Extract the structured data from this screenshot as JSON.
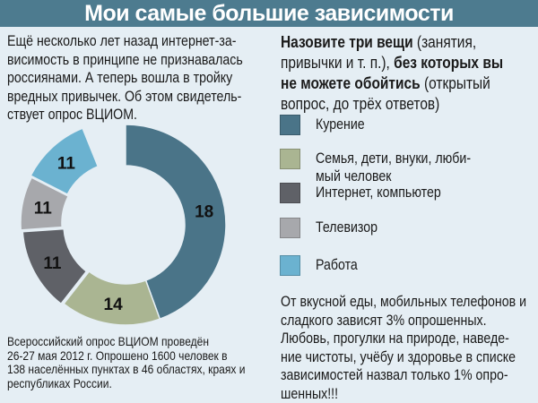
{
  "title": "Мои самые большие зависимости",
  "intro_lines": [
    "Ещё несколько лет назад интернет-за-",
    "висимость в принципе не признавалась",
    "россиянами. А теперь вошла в тройку",
    "вредных привычек. Об этом свидетель-",
    "ствует опрос ВЦИОМ."
  ],
  "question": {
    "line1_bold": "Назовите три вещи",
    "line1_rest": " (занятия,",
    "line2_normal": "привычки и т. п.), ",
    "line2_bold": "без которых вы",
    "line3_bold": "не можете обойтись",
    "line3_rest": " (открытый",
    "line4": "вопрос, до трёх ответов)"
  },
  "chart_data": {
    "type": "pie",
    "title": "Мои самые большие зависимости",
    "unit": "%",
    "categories": [
      "Курение",
      "Семья, дети, внуки, любимый человек",
      "Интернет, компьютер",
      "Телевизор",
      "Работа"
    ],
    "values": [
      18,
      14,
      11,
      11,
      11
    ],
    "colors": [
      "#4a7488",
      "#aab592",
      "#5f6167",
      "#a7a8ac",
      "#6bb2d0"
    ],
    "legend": {
      "placement": "right",
      "items": [
        {
          "lines": [
            "Курение"
          ]
        },
        {
          "lines": [
            "Семья, дети, внуки, люби-",
            "мый человек"
          ]
        },
        {
          "lines": [
            "Интернет, компьютер"
          ]
        },
        {
          "lines": [
            "Телевизор"
          ]
        },
        {
          "lines": [
            "Работа"
          ]
        }
      ]
    }
  },
  "note_lines": [
    "От вкусной еды, мобильных телефонов и",
    "сладкого зависят 3% опрошенных.",
    "Любовь, прогулки на природе, наведе-",
    "ние чистоты, учёбу и здоровье в списке",
    "зависимостей назвал только 1% опро-",
    "шенных!!!"
  ],
  "footnote_lines": [
    "Всероссийский опрос ВЦИОМ проведён",
    "26-27 мая 2012 г. Опрошено 1600 человек в",
    "138 населённых пунктах в 46 областях, краях и",
    "республиках России."
  ]
}
